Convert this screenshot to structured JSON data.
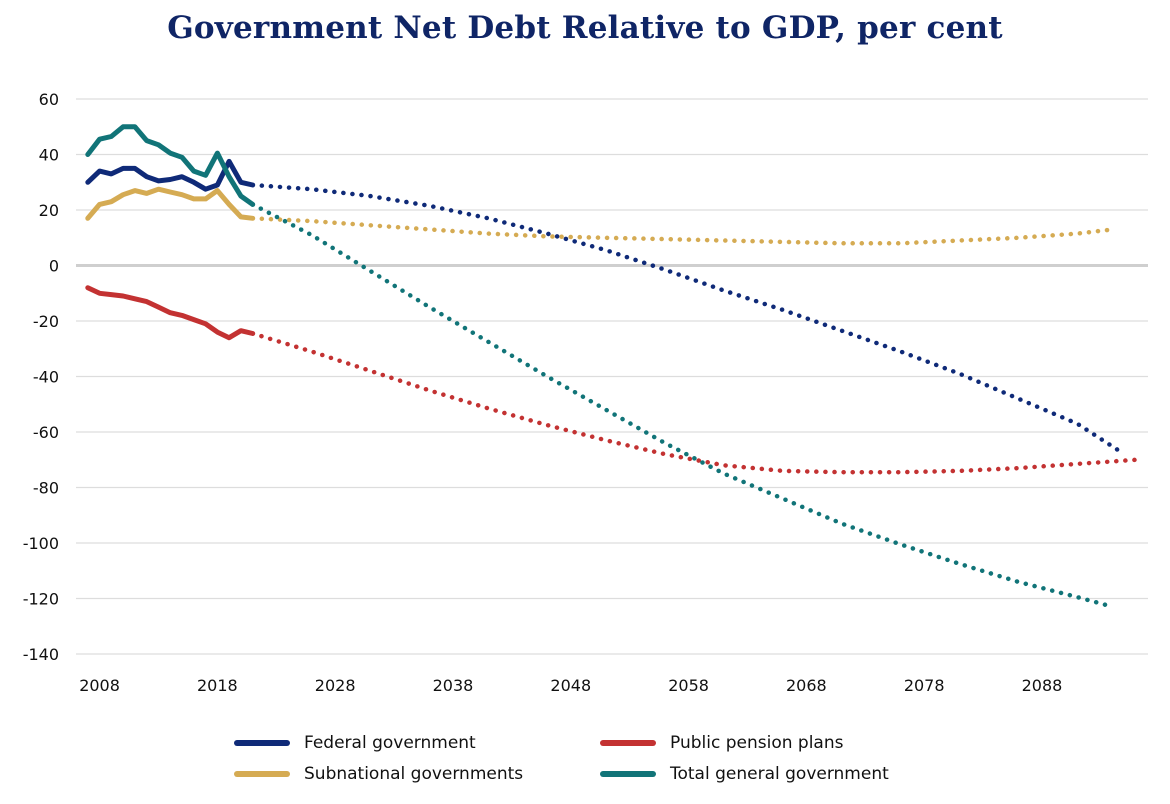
{
  "chart_data": {
    "type": "line",
    "title": "Government Net Debt Relative to GDP, per cent",
    "xlabel": "",
    "ylabel": "",
    "xlim": [
      2006,
      2097
    ],
    "ylim": [
      -140,
      60
    ],
    "yticks": [
      60,
      40,
      20,
      0,
      -20,
      -40,
      -60,
      -80,
      -100,
      -120,
      -140
    ],
    "xticks": [
      2008,
      2018,
      2028,
      2038,
      2048,
      2058,
      2068,
      2078,
      2088
    ],
    "grid": true,
    "legend_position": "bottom",
    "series": [
      {
        "name": "Federal government",
        "color": "#0f2a78",
        "historical": {
          "x": [
            2007,
            2008,
            2009,
            2010,
            2011,
            2012,
            2013,
            2014,
            2015,
            2016,
            2017,
            2018,
            2019,
            2020,
            2021
          ],
          "values": [
            30,
            34,
            33,
            35,
            35,
            32,
            30.5,
            31,
            32,
            30,
            27.5,
            29,
            37.5,
            30,
            29
          ]
        },
        "projection": {
          "x": [
            2021,
            2026,
            2031,
            2036,
            2041,
            2046,
            2051,
            2056,
            2061,
            2066,
            2071,
            2076,
            2081,
            2086,
            2091,
            2095
          ],
          "values": [
            29,
            27.5,
            25,
            21.5,
            17,
            11.5,
            5.5,
            -1.5,
            -9,
            -16,
            -23.5,
            -31,
            -39,
            -48,
            -57,
            -68
          ]
        }
      },
      {
        "name": "Subnational governments",
        "color": "#d5ab53",
        "historical": {
          "x": [
            2007,
            2008,
            2009,
            2010,
            2011,
            2012,
            2013,
            2014,
            2015,
            2016,
            2017,
            2018,
            2019,
            2020,
            2021
          ],
          "values": [
            17,
            22,
            23,
            25.5,
            27,
            26,
            27.5,
            26.5,
            25.5,
            24,
            24,
            27,
            22,
            17.5,
            17
          ]
        },
        "projection": {
          "x": [
            2021,
            2026,
            2031,
            2036,
            2041,
            2046,
            2051,
            2056,
            2061,
            2066,
            2071,
            2076,
            2081,
            2086,
            2091,
            2094
          ],
          "values": [
            17,
            16,
            14.5,
            13,
            11.5,
            10.5,
            10,
            9.5,
            9,
            8.5,
            8,
            8,
            9,
            10,
            11.5,
            13
          ]
        }
      },
      {
        "name": "Public pension plans",
        "color": "#c33232",
        "historical": {
          "x": [
            2007,
            2008,
            2009,
            2010,
            2011,
            2012,
            2013,
            2014,
            2015,
            2016,
            2017,
            2018,
            2019,
            2020,
            2021
          ],
          "values": [
            -8,
            -10,
            -10.5,
            -11,
            -12,
            -13,
            -15,
            -17,
            -18,
            -19.5,
            -21,
            -24,
            -26,
            -23.5,
            -24.5
          ]
        },
        "projection": {
          "x": [
            2021,
            2026,
            2031,
            2036,
            2041,
            2046,
            2051,
            2056,
            2061,
            2066,
            2071,
            2076,
            2081,
            2086,
            2091,
            2096
          ],
          "values": [
            -24.5,
            -31,
            -38,
            -45,
            -51.5,
            -57.5,
            -63,
            -68,
            -72,
            -74,
            -74.5,
            -74.5,
            -74,
            -73,
            -71.5,
            -70
          ]
        }
      },
      {
        "name": "Total general government",
        "color": "#117478",
        "historical": {
          "x": [
            2007,
            2008,
            2009,
            2010,
            2011,
            2012,
            2013,
            2014,
            2015,
            2016,
            2017,
            2018,
            2019,
            2020,
            2021
          ],
          "values": [
            40,
            45.5,
            46.5,
            50,
            50,
            45,
            43.5,
            40.5,
            39,
            34,
            32.5,
            40.5,
            32,
            25,
            22
          ]
        },
        "projection": {
          "x": [
            2021,
            2026,
            2031,
            2036,
            2041,
            2046,
            2051,
            2056,
            2061,
            2066,
            2071,
            2076,
            2081,
            2086,
            2091,
            2094
          ],
          "values": [
            22,
            11,
            -2,
            -15,
            -27.5,
            -40,
            -52,
            -64,
            -75,
            -84,
            -93,
            -100.5,
            -107.5,
            -114,
            -119.5,
            -123
          ]
        }
      }
    ]
  },
  "legend": {
    "items": [
      {
        "label": "Federal government",
        "color": "#0f2a78"
      },
      {
        "label": "Public pension plans",
        "color": "#c33232"
      },
      {
        "label": "Subnational governments",
        "color": "#d5ab53"
      },
      {
        "label": "Total general government",
        "color": "#117478"
      }
    ]
  }
}
